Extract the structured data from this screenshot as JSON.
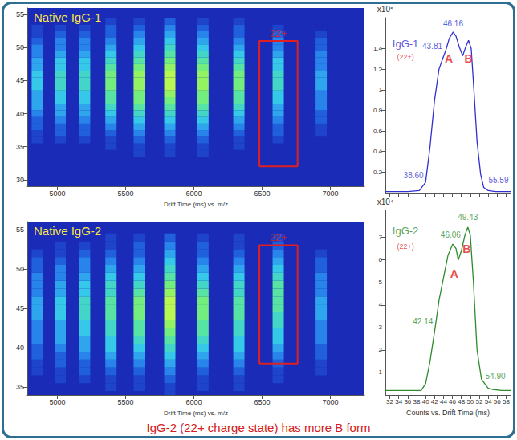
{
  "chart_data": [
    {
      "type": "heatmap",
      "title": "Native IgG-1",
      "xlabel": "Drift Time (ms) vs. m/z",
      "xlim": [
        4780,
        7250
      ],
      "xticks": [
        5000,
        5500,
        6000,
        6500,
        7000
      ],
      "ylim": [
        29,
        56
      ],
      "yticks": [
        30,
        35,
        40,
        45,
        50,
        55
      ],
      "x": [
        4853,
        5021,
        5200,
        5393,
        5600,
        5824,
        6067,
        6330,
        6618,
        6933
      ],
      "y": [
        34,
        35,
        36,
        37,
        38,
        39,
        40,
        41,
        42,
        43,
        44,
        45,
        46,
        47,
        48,
        49,
        50,
        51,
        52,
        53,
        54
      ],
      "values": [
        [
          0,
          0,
          1,
          1,
          2,
          2,
          3,
          4,
          4,
          4,
          5,
          5,
          5,
          4,
          4,
          3,
          3,
          2,
          1,
          1,
          0
        ],
        [
          0,
          0,
          1,
          2,
          2,
          3,
          4,
          4,
          5,
          5,
          6,
          6,
          6,
          5,
          5,
          4,
          3,
          3,
          2,
          1,
          0
        ],
        [
          0,
          0,
          1,
          2,
          2,
          3,
          4,
          4,
          5,
          5,
          6,
          6,
          6,
          5,
          5,
          4,
          3,
          3,
          2,
          1,
          0
        ],
        [
          0,
          1,
          1,
          2,
          3,
          4,
          5,
          6,
          7,
          7,
          8,
          8,
          8,
          7,
          6,
          5,
          4,
          3,
          2,
          2,
          1
        ],
        [
          1,
          1,
          2,
          3,
          4,
          5,
          6,
          7,
          8,
          8,
          9,
          9,
          9,
          8,
          7,
          6,
          5,
          4,
          3,
          2,
          1
        ],
        [
          1,
          1,
          2,
          3,
          4,
          5,
          6,
          7,
          8,
          9,
          10,
          10,
          10,
          9,
          8,
          7,
          6,
          5,
          4,
          3,
          2
        ],
        [
          1,
          1,
          2,
          3,
          4,
          5,
          6,
          7,
          8,
          8,
          9,
          9,
          9,
          8,
          7,
          6,
          5,
          4,
          3,
          2,
          1
        ],
        [
          0,
          1,
          1,
          2,
          3,
          4,
          5,
          6,
          7,
          7,
          8,
          8,
          8,
          7,
          6,
          5,
          4,
          3,
          2,
          2,
          1
        ],
        [
          0,
          0,
          1,
          2,
          2,
          3,
          4,
          4,
          5,
          5,
          6,
          6,
          6,
          5,
          5,
          4,
          3,
          3,
          2,
          1,
          0
        ],
        [
          0,
          0,
          0,
          1,
          1,
          2,
          2,
          3,
          3,
          3,
          4,
          4,
          4,
          3,
          3,
          3,
          2,
          2,
          1,
          0,
          0
        ]
      ],
      "box": {
        "label": "22+",
        "x": [
          6480,
          6760
        ],
        "y": [
          32,
          51
        ],
        "color": "#e02020"
      }
    },
    {
      "type": "line",
      "xlim": [
        31,
        59
      ],
      "xticks": [
        32,
        34,
        36,
        38,
        40,
        42,
        44,
        46,
        48,
        50,
        52,
        54,
        56,
        58
      ],
      "ylim": [
        0,
        1.7
      ],
      "yticks": [
        0.2,
        0.4,
        0.6,
        0.8,
        1,
        1.2,
        1.4
      ],
      "ylabel": "x10⁵",
      "tick_labels": "y",
      "grid": false,
      "color": "#3030d0",
      "x": [
        31,
        36,
        38.6,
        40,
        41,
        42,
        43,
        43.81,
        44.5,
        45.3,
        46.16,
        46.8,
        47.5,
        48.3,
        49,
        49.6,
        50.2,
        50.8,
        51.5,
        52.3,
        53,
        54,
        55.59,
        59
      ],
      "values": [
        0.01,
        0.01,
        0.02,
        0.1,
        0.45,
        0.9,
        1.2,
        1.3,
        1.38,
        1.5,
        1.56,
        1.52,
        1.42,
        1.33,
        1.42,
        1.48,
        1.4,
        1.0,
        0.5,
        0.18,
        0.05,
        0.02,
        0.01,
        0.01
      ],
      "annotations": [
        {
          "text": "IgG-1",
          "x": 35.5,
          "y": 1.45,
          "color": "#3030d0"
        },
        {
          "text": "(22+)",
          "x": 35.5,
          "y": 1.32,
          "color": "#e02020"
        },
        {
          "text": "38.60",
          "x": 37.3,
          "y": 0.17,
          "color": "#3030d0"
        },
        {
          "text": "43.81",
          "x": 41.5,
          "y": 1.42,
          "color": "#3030d0"
        },
        {
          "text": "46.16",
          "x": 46.16,
          "y": 1.64,
          "color": "#3030d0"
        },
        {
          "text": "55.59",
          "x": 56.3,
          "y": 0.12,
          "color": "#3030d0"
        },
        {
          "text": "A",
          "x": 45.2,
          "y": 1.3,
          "color": "#e02020"
        },
        {
          "text": "B",
          "x": 49.6,
          "y": 1.3,
          "color": "#e02020"
        }
      ]
    },
    {
      "type": "heatmap",
      "title": "Native IgG-2",
      "xlabel": "Drift Time (ms) vs. m/z",
      "xlim": [
        4780,
        7250
      ],
      "xticks": [
        5000,
        5500,
        6000,
        6500,
        7000
      ],
      "ylim": [
        34,
        56
      ],
      "yticks": [
        35,
        40,
        45,
        50,
        55
      ],
      "x": [
        4853,
        5021,
        5200,
        5393,
        5600,
        5824,
        6067,
        6330,
        6618,
        6933
      ],
      "y": [
        34,
        35,
        36,
        37,
        38,
        39,
        40,
        41,
        42,
        43,
        44,
        45,
        46,
        47,
        48,
        49,
        50,
        51,
        52,
        53,
        54
      ],
      "values": [
        [
          0,
          0,
          0,
          1,
          1,
          2,
          2,
          3,
          3,
          3,
          4,
          4,
          4,
          3,
          3,
          3,
          2,
          2,
          1,
          0,
          0
        ],
        [
          0,
          0,
          1,
          1,
          2,
          2,
          3,
          4,
          4,
          4,
          5,
          5,
          5,
          4,
          4,
          3,
          3,
          2,
          1,
          1,
          0
        ],
        [
          0,
          0,
          1,
          2,
          2,
          3,
          4,
          4,
          5,
          5,
          6,
          6,
          6,
          5,
          5,
          4,
          3,
          3,
          2,
          1,
          0
        ],
        [
          0,
          1,
          1,
          2,
          3,
          4,
          5,
          5,
          6,
          6,
          7,
          7,
          7,
          6,
          6,
          5,
          4,
          3,
          2,
          1,
          1
        ],
        [
          0,
          1,
          1,
          2,
          3,
          4,
          5,
          6,
          7,
          7,
          8,
          8,
          8,
          7,
          6,
          5,
          4,
          3,
          2,
          2,
          1
        ],
        [
          1,
          1,
          2,
          3,
          4,
          5,
          6,
          7,
          8,
          9,
          10,
          10,
          10,
          9,
          8,
          7,
          6,
          5,
          4,
          3,
          2
        ],
        [
          0,
          1,
          1,
          2,
          3,
          4,
          5,
          6,
          7,
          7,
          8,
          8,
          8,
          7,
          6,
          5,
          4,
          3,
          2,
          2,
          1
        ],
        [
          0,
          1,
          1,
          2,
          3,
          4,
          5,
          5,
          6,
          6,
          7,
          7,
          7,
          6,
          6,
          5,
          4,
          3,
          2,
          1,
          1
        ],
        [
          0,
          0,
          1,
          1,
          2,
          3,
          4,
          5,
          5,
          6,
          6,
          7,
          7,
          7,
          7,
          6,
          5,
          4,
          3,
          2,
          1
        ],
        [
          0,
          0,
          0,
          1,
          1,
          2,
          2,
          3,
          3,
          3,
          4,
          4,
          4,
          3,
          3,
          3,
          2,
          2,
          1,
          0,
          0
        ]
      ],
      "box": {
        "label": "22+",
        "x": [
          6480,
          6760
        ],
        "y": [
          38,
          53
        ],
        "color": "#e02020"
      }
    },
    {
      "type": "line",
      "xlabel": "Counts vs. Drift Time (ms)",
      "xlim": [
        31,
        59
      ],
      "xticks": [
        32,
        34,
        36,
        38,
        40,
        42,
        44,
        46,
        48,
        50,
        52,
        54,
        56,
        58
      ],
      "ylim": [
        0,
        8.2
      ],
      "yticks": [
        1,
        2,
        3,
        4,
        5,
        6,
        7
      ],
      "ylabel": "x10⁴",
      "grid": false,
      "color": "#2e8b2e",
      "x": [
        31,
        36,
        39,
        40,
        41,
        42.14,
        43,
        44,
        45,
        46.06,
        46.8,
        47.3,
        48,
        48.8,
        49.43,
        50,
        50.7,
        51.5,
        52.5,
        54,
        54.9,
        57,
        59
      ],
      "values": [
        0.2,
        0.2,
        0.2,
        0.5,
        1.5,
        3.0,
        4.2,
        5.2,
        6.2,
        6.7,
        6.5,
        6.0,
        6.4,
        7.1,
        7.45,
        7.1,
        5.0,
        2.0,
        0.7,
        0.3,
        0.25,
        0.2,
        0.2
      ],
      "annotations": [
        {
          "text": "IgG-2",
          "x": 35.5,
          "y": 7.3,
          "color": "#2e8b2e"
        },
        {
          "text": "(22+)",
          "x": 35.5,
          "y": 6.6,
          "color": "#e02020"
        },
        {
          "text": "42.14",
          "x": 39.4,
          "y": 3.25,
          "color": "#2e8b2e"
        },
        {
          "text": "46.06",
          "x": 45.6,
          "y": 7.1,
          "color": "#2e8b2e"
        },
        {
          "text": "49.43",
          "x": 49.43,
          "y": 7.9,
          "color": "#2e8b2e"
        },
        {
          "text": "54.90",
          "x": 55.6,
          "y": 0.85,
          "color": "#2e8b2e"
        },
        {
          "text": "A",
          "x": 46.4,
          "y": 5.4,
          "color": "#e02020"
        },
        {
          "text": "B",
          "x": 49.2,
          "y": 6.5,
          "color": "#e02020"
        }
      ]
    }
  ],
  "caption": "IgG-2 (22+ charge state) has more B form"
}
